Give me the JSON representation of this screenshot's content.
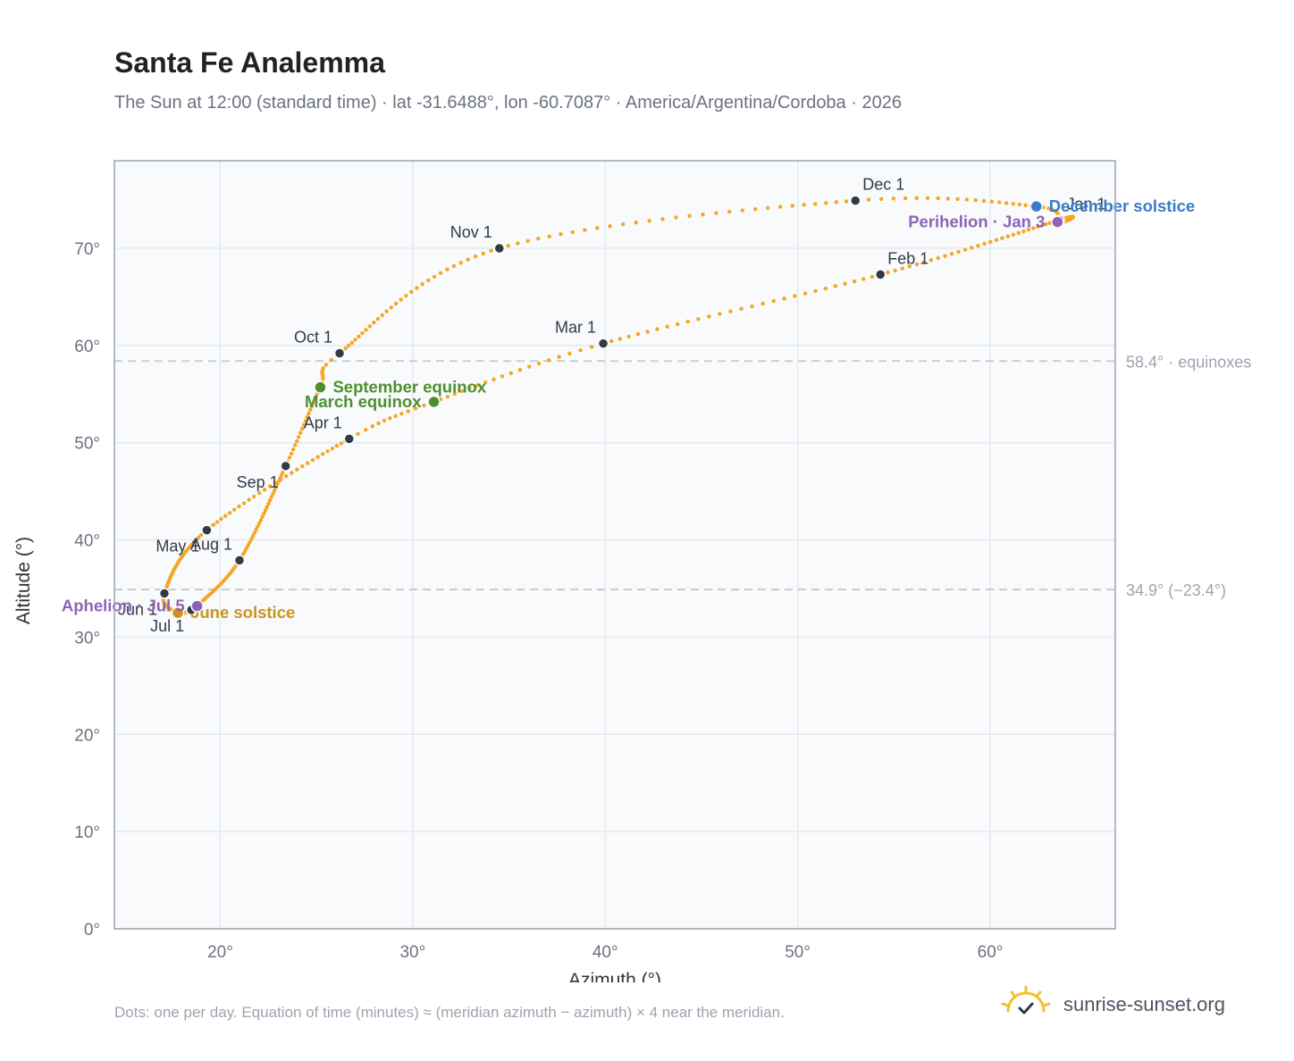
{
  "header": {
    "title": "Santa Fe Analemma",
    "subtitle": "The Sun at 12:00 (standard time) · lat -31.6488°, lon -60.7087° · America/Argentina/Cordoba · 2026"
  },
  "footer": {
    "note": "Dots: one per day. Equation of time (minutes) ≈ (meridian azimuth − azimuth) × 4 near the meridian.",
    "brand": "sunrise-sunset.org",
    "brand_icon": "sun-logo-icon"
  },
  "colors": {
    "curve": "#f5a623",
    "month_dot": "#333a46",
    "solstice_june": "#c9931c",
    "solstice_december": "#3a7bc8",
    "equinox": "#4f8f2f",
    "apsis": "#8e63b5",
    "grid": "#e5e9ee",
    "plot_bg": "#f8fafc",
    "reference_line": "#c4c9d0"
  },
  "chart_data": {
    "type": "scatter",
    "xlabel": "Azimuth (°)",
    "ylabel": "Altitude (°)",
    "xlim": [
      14.5,
      66.5
    ],
    "ylim": [
      0,
      79
    ],
    "x_ticks": [
      20,
      30,
      40,
      50,
      60
    ],
    "x_tick_labels": [
      "20°",
      "30°",
      "40°",
      "50°",
      "60°"
    ],
    "y_ticks": [
      0,
      10,
      20,
      30,
      40,
      50,
      60,
      70
    ],
    "y_tick_labels": [
      "0°",
      "10°",
      "20°",
      "30°",
      "40°",
      "50°",
      "60°",
      "70°"
    ],
    "grid": true,
    "points_per": "day",
    "reference_lines": [
      {
        "y": 58.4,
        "label": "58.4° · equinoxes"
      },
      {
        "y": 34.9,
        "label": "34.9° (−23.4°)"
      }
    ],
    "path_keypoints": [
      {
        "date": "Jan 1",
        "az": 63.6,
        "alt": 72.9
      },
      {
        "date": "Feb 1",
        "az": 54.3,
        "alt": 67.3
      },
      {
        "date": "Mar 1",
        "az": 39.9,
        "alt": 60.2
      },
      {
        "date": "Mar 20",
        "az": 31.1,
        "alt": 54.2
      },
      {
        "date": "Apr 1",
        "az": 26.7,
        "alt": 50.4
      },
      {
        "date": "May 1",
        "az": 19.3,
        "alt": 41.0
      },
      {
        "date": "Jun 1",
        "az": 17.1,
        "alt": 34.5
      },
      {
        "date": "Jun 21",
        "az": 17.8,
        "alt": 32.5
      },
      {
        "date": "Jul 1",
        "az": 18.5,
        "alt": 32.8
      },
      {
        "date": "Jul 5",
        "az": 18.8,
        "alt": 33.2
      },
      {
        "date": "Aug 1",
        "az": 21.0,
        "alt": 37.9
      },
      {
        "date": "Sep 1",
        "az": 23.4,
        "alt": 47.6
      },
      {
        "date": "Sep 22",
        "az": 25.2,
        "alt": 55.7
      },
      {
        "date": "Oct 1",
        "az": 26.2,
        "alt": 59.2
      },
      {
        "date": "Nov 1",
        "az": 34.5,
        "alt": 70.0
      },
      {
        "date": "Dec 1",
        "az": 53.0,
        "alt": 74.9
      },
      {
        "date": "Dec 21",
        "az": 62.4,
        "alt": 74.3
      },
      {
        "date": "Jan 3",
        "az": 63.5,
        "alt": 72.7
      }
    ],
    "month_markers": [
      {
        "label": "Jan 1",
        "az": 63.6,
        "alt": 72.9,
        "label_pos": "ne"
      },
      {
        "label": "Feb 1",
        "az": 54.3,
        "alt": 67.3,
        "label_pos": "ne"
      },
      {
        "label": "Mar 1",
        "az": 39.9,
        "alt": 60.2,
        "label_pos": "nw"
      },
      {
        "label": "Apr 1",
        "az": 26.7,
        "alt": 50.4,
        "label_pos": "nw"
      },
      {
        "label": "May 1",
        "az": 19.3,
        "alt": 41.0,
        "label_pos": "sw"
      },
      {
        "label": "Jun 1",
        "az": 17.1,
        "alt": 34.5,
        "label_pos": "sw"
      },
      {
        "label": "Jul 1",
        "az": 18.5,
        "alt": 32.8,
        "label_pos": "sw"
      },
      {
        "label": "Aug 1",
        "az": 21.0,
        "alt": 37.9,
        "label_pos": "nw"
      },
      {
        "label": "Sep 1",
        "az": 23.4,
        "alt": 47.6,
        "label_pos": "sw"
      },
      {
        "label": "Oct 1",
        "az": 26.2,
        "alt": 59.2,
        "label_pos": "nw"
      },
      {
        "label": "Nov 1",
        "az": 34.5,
        "alt": 70.0,
        "label_pos": "nw"
      },
      {
        "label": "Dec 1",
        "az": 53.0,
        "alt": 74.9,
        "label_pos": "ne"
      }
    ],
    "events": [
      {
        "label": "December solstice",
        "az": 62.4,
        "alt": 74.3,
        "color_key": "solstice_december",
        "label_pos": "e"
      },
      {
        "label": "Perihelion · Jan 3",
        "az": 63.5,
        "alt": 72.7,
        "color_key": "apsis",
        "label_pos": "w"
      },
      {
        "label": "March equinox",
        "az": 31.1,
        "alt": 54.2,
        "color_key": "equinox",
        "label_pos": "w"
      },
      {
        "label": "September equinox",
        "az": 25.2,
        "alt": 55.7,
        "color_key": "equinox",
        "label_pos": "e"
      },
      {
        "label": "June solstice",
        "az": 17.8,
        "alt": 32.5,
        "color_key": "solstice_june",
        "label_pos": "e"
      },
      {
        "label": "Aphelion · Jul 5",
        "az": 18.8,
        "alt": 33.2,
        "color_key": "apsis",
        "label_pos": "w"
      }
    ]
  }
}
